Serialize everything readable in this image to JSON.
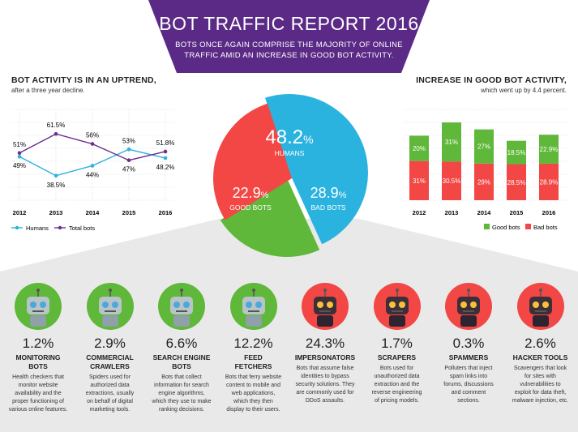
{
  "header": {
    "title": "BOT TRAFFIC REPORT 2016",
    "subtitle_line1": "BOTS ONCE AGAIN COMPRISE THE MAJORITY OF ONLINE",
    "subtitle_line2": "TRAFFIC AMID AN INCREASE IN GOOD BOT ACTIVITY.",
    "banner_color": "#5b2a86"
  },
  "colors": {
    "humans": "#2bb3e0",
    "good_bots": "#5fb83a",
    "bad_bots": "#f24744",
    "total_bots": "#6a2f8f",
    "bottom_panel": "#e9e9e9"
  },
  "chart_data": [
    {
      "type": "line",
      "title": "BOT ACTIVITY IS IN AN UPTREND,",
      "subtitle": "after a three year decline.",
      "x": [
        "2012",
        "2013",
        "2014",
        "2015",
        "2016"
      ],
      "series": [
        {
          "name": "Humans",
          "values": [
            49,
            38.5,
            44,
            53,
            48.2
          ],
          "labels": [
            "49%",
            "38.5%",
            "44%",
            "53%",
            "48.2%"
          ]
        },
        {
          "name": "Total bots",
          "values": [
            51,
            61.5,
            56,
            47,
            51.8
          ],
          "labels": [
            "51%",
            "61.5%",
            "56%",
            "47%",
            "51.8%"
          ]
        }
      ],
      "ylim": [
        25,
        75
      ],
      "legend": "bottom-left",
      "grid": true
    },
    {
      "type": "pie",
      "slices": [
        {
          "name": "HUMANS",
          "value": 48.2,
          "label": "48.2"
        },
        {
          "name": "GOOD BOTS",
          "value": 22.9,
          "label": "22.9"
        },
        {
          "name": "BAD BOTS",
          "value": 28.9,
          "label": "28.9"
        }
      ],
      "unit": "%"
    },
    {
      "type": "bar",
      "stacked": true,
      "title": "INCREASE IN GOOD BOT ACTIVITY,",
      "subtitle": "which went up by 4.4 percent.",
      "categories": [
        "2012",
        "2013",
        "2014",
        "2015",
        "2016"
      ],
      "series": [
        {
          "name": "Bad bots",
          "values": [
            31,
            30.5,
            29,
            28.5,
            28.9
          ],
          "labels": [
            "31%",
            "30.5%",
            "29%",
            "28.5%",
            "28.9%"
          ]
        },
        {
          "name": "Good bots",
          "values": [
            20,
            31,
            27,
            18.5,
            22.9
          ],
          "labels": [
            "20%",
            "31%",
            "27%",
            "18.5%",
            "22.9%"
          ]
        }
      ],
      "ylim": [
        0,
        65
      ],
      "legend": "bottom-right",
      "grid": true
    }
  ],
  "bots": [
    {
      "pct": "1.2%",
      "name1": "MONITORING",
      "name2": "BOTS",
      "kind": "good",
      "icon": "doctor-bot-icon",
      "desc": [
        "Health checkers that",
        "monitor website",
        "availability and the",
        "proper functioning of",
        "various online features."
      ]
    },
    {
      "pct": "2.9%",
      "name1": "COMMERCIAL",
      "name2": "CRAWLERS",
      "kind": "good",
      "icon": "spider-bot-icon",
      "desc": [
        "Spiders used for",
        "authorized data",
        "extractions, usually",
        "on behalf of digital",
        "marketing tools."
      ]
    },
    {
      "pct": "6.6%",
      "name1": "SEARCH ENGINE",
      "name2": "BOTS",
      "kind": "good",
      "icon": "detective-bot-icon",
      "desc": [
        "Bots that collect",
        "information for search",
        "engine algorithms,",
        "which they use to make",
        "ranking decisions."
      ]
    },
    {
      "pct": "12.2%",
      "name1": "FEED",
      "name2": "FETCHERS",
      "kind": "good",
      "icon": "feed-bot-icon",
      "desc": [
        "Bots that ferry website",
        "content to mobile and",
        "web applications,",
        "which they then",
        "display to their users."
      ]
    },
    {
      "pct": "24.3%",
      "name1": "IMPERSONATORS",
      "name2": "",
      "kind": "bad",
      "icon": "impersonator-bot-icon",
      "desc": [
        "Bots that assume false",
        "identities to bypass",
        "security solutions. They",
        "are commonly used for",
        "DDoS assaults."
      ]
    },
    {
      "pct": "1.7%",
      "name1": "SCRAPERS",
      "name2": "",
      "kind": "bad",
      "icon": "scraper-bot-icon",
      "desc": [
        "Bots used for",
        "unauthorized data",
        "extraction and the",
        "reverse engineering",
        "of pricing models."
      ]
    },
    {
      "pct": "0.3%",
      "name1": "SPAMMERS",
      "name2": "",
      "kind": "bad",
      "icon": "spammer-bot-icon",
      "desc": [
        "Polluters that inject",
        "spam links into",
        "forums, discussions",
        "and comment",
        "sections."
      ]
    },
    {
      "pct": "2.6%",
      "name1": "HACKER TOOLS",
      "name2": "",
      "kind": "bad",
      "icon": "hacker-bot-icon",
      "desc": [
        "Scavengers that look",
        "for sites with",
        "vulnerabilities to",
        "exploit for data theft,",
        "malware injection, etc."
      ]
    }
  ]
}
